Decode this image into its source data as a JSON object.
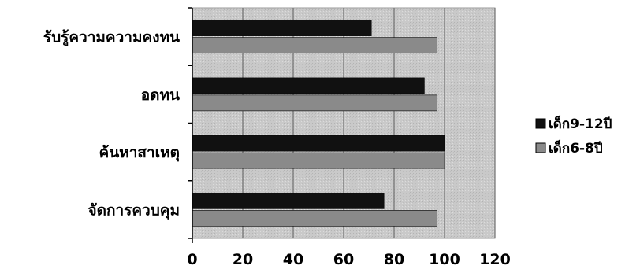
{
  "chart_data": {
    "type": "bar",
    "orientation": "horizontal",
    "categories": [
      "รับรู้ความความคงทน",
      "อดทน",
      "ค้นหาสาเหตุ",
      "จัดการควบคุม"
    ],
    "series": [
      {
        "name": "เด็ก9-12ปี",
        "values": [
          71,
          92,
          100,
          76
        ],
        "color": "#111111"
      },
      {
        "name": "เด็ก6-8ปี",
        "values": [
          97,
          97,
          100,
          97
        ],
        "color": "#8a8a8a"
      }
    ],
    "xlim": [
      0,
      120
    ],
    "xticks": [
      "0",
      "20",
      "40",
      "60",
      "80",
      "100",
      "120"
    ],
    "title": "",
    "xlabel": "",
    "ylabel": "",
    "grid": true,
    "legend_position": "right",
    "colors": {
      "plot_background": "#cfcfcf",
      "gridline": "#707070",
      "axis": "#000000"
    }
  }
}
